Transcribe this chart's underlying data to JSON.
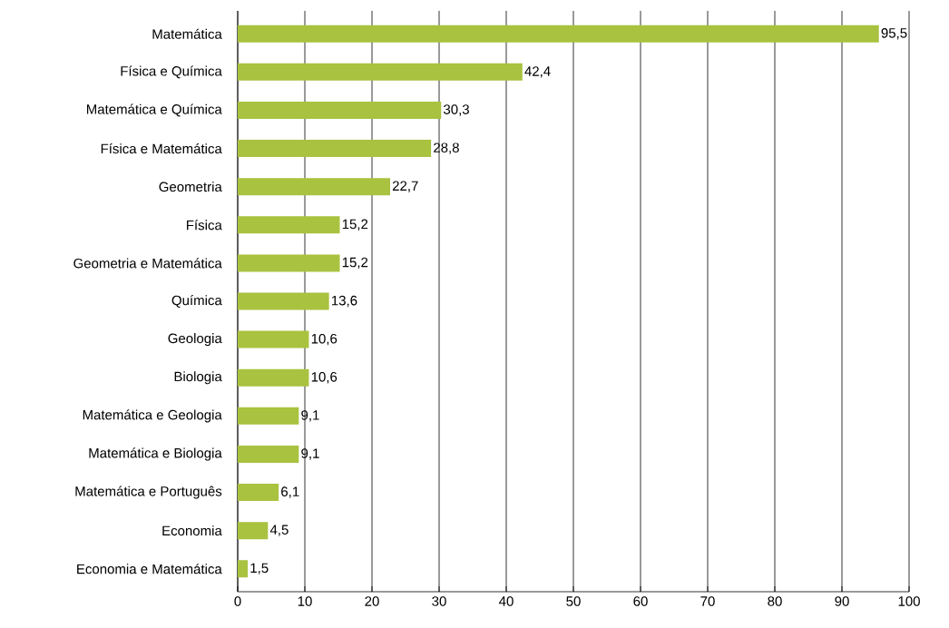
{
  "chart_data": {
    "type": "bar",
    "orientation": "horizontal",
    "categories": [
      "Matemática",
      "Física e Química",
      "Matemática e Química",
      "Física e Matemática",
      "Geometria",
      "Física",
      "Geometria e Matemática",
      "Química",
      "Geologia",
      "Biologia",
      "Matemática e Geologia",
      "Matemática e Biologia",
      "Matemática e Português",
      "Economia",
      "Economia e Matemática"
    ],
    "values": [
      95.5,
      42.4,
      30.3,
      28.8,
      22.7,
      15.2,
      15.2,
      13.6,
      10.6,
      10.6,
      9.1,
      9.1,
      6.1,
      4.5,
      1.5
    ],
    "value_labels": [
      "95,5",
      "42,4",
      "30,3",
      "28,8",
      "22,7",
      "15,2",
      "15,2",
      "13,6",
      "10,6",
      "10,6",
      "9,1",
      "9,1",
      "6,1",
      "4,5",
      "1,5"
    ],
    "color": "#a9c23f",
    "xlim": [
      0,
      100
    ],
    "xticks": [
      0,
      10,
      20,
      30,
      40,
      50,
      60,
      70,
      80,
      90,
      100
    ],
    "grid": "x"
  }
}
